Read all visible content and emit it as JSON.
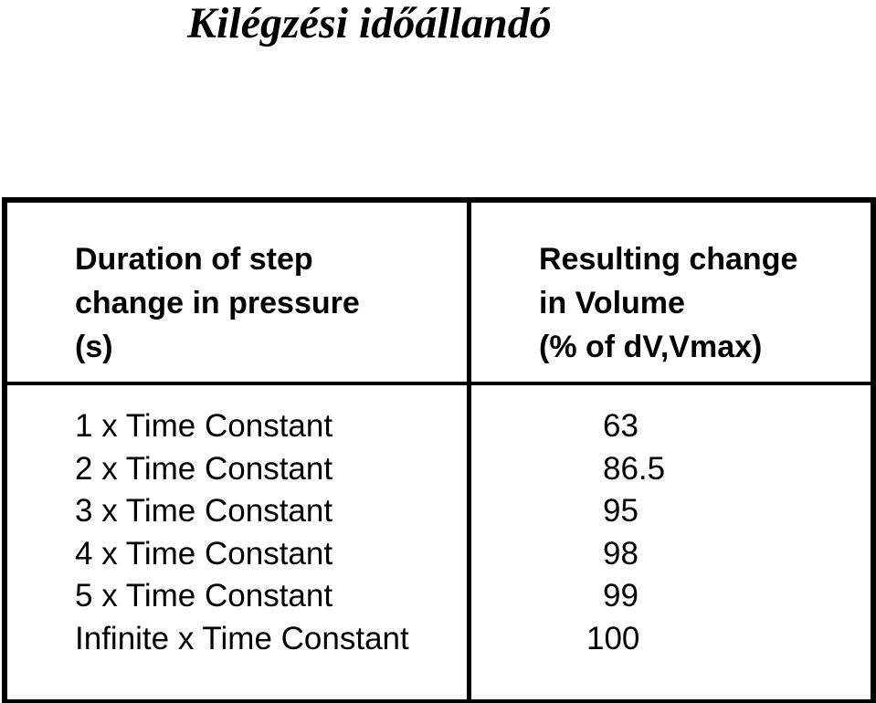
{
  "title": "Kilégzési időállandó",
  "table": {
    "headers": {
      "left": [
        "Duration of step",
        "change in pressure",
        "(s)"
      ],
      "right": [
        "Resulting change",
        "in Volume",
        "(% of dV,Vmax)"
      ]
    },
    "rows": [
      {
        "duration": "1 x Time Constant",
        "change": "63"
      },
      {
        "duration": "2 x Time Constant",
        "change": "86.5"
      },
      {
        "duration": "3 x Time Constant",
        "change": "95"
      },
      {
        "duration": "4 x Time Constant",
        "change": "98"
      },
      {
        "duration": "5 x Time Constant",
        "change": "99"
      },
      {
        "duration": "Infinite x Time Constant",
        "change": "100"
      }
    ]
  }
}
